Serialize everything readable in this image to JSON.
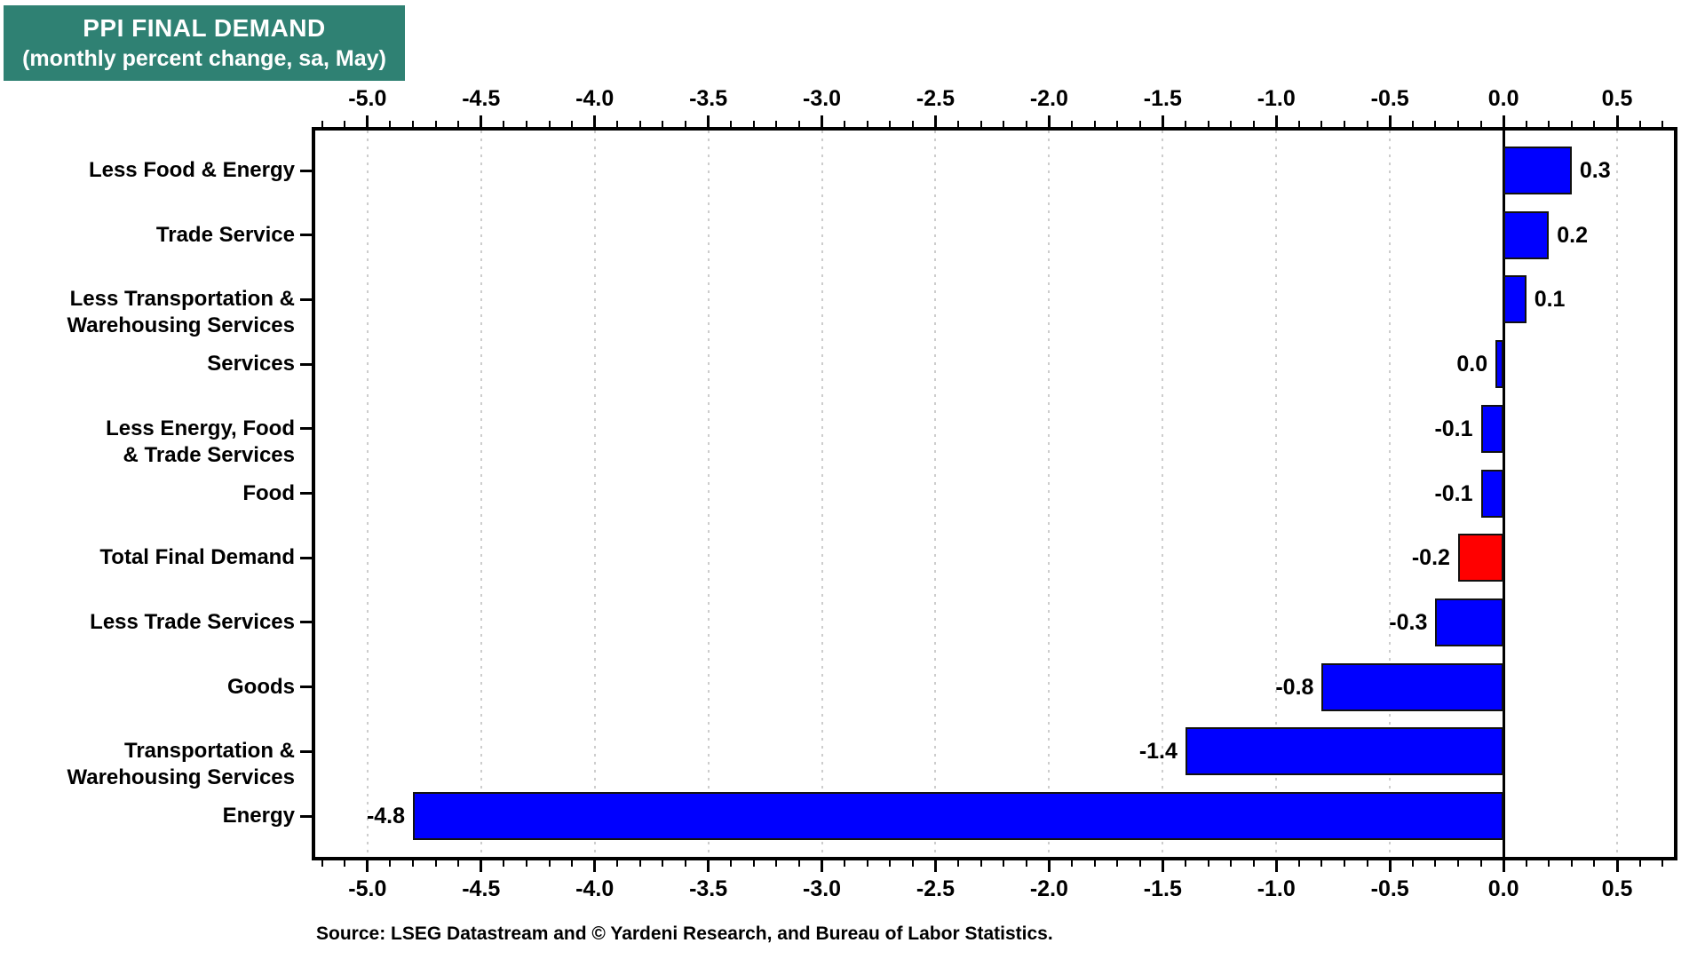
{
  "title": {
    "line1": "PPI FINAL DEMAND",
    "line2": "(monthly percent change, sa, May)"
  },
  "source": "Source: LSEG Datastream and © Yardeni Research, and Bureau of Labor Statistics.",
  "colors": {
    "title_background": "#2F8173",
    "title_text": "#FFFFFF",
    "bar": "#0000FF",
    "highlight": "#FF0000",
    "bar_border": "#111111",
    "grid": "#CDCDCD",
    "axis": "#000000",
    "text": "#000000"
  },
  "chart_data": {
    "type": "bar",
    "orientation": "horizontal",
    "title": "PPI FINAL DEMAND (monthly percent change, sa, May)",
    "xlabel": "monthly percent change (sa, May)",
    "ylabel": "",
    "legend": "none",
    "grid": {
      "style": "dotted-vertical",
      "interval": 0.5,
      "zero_line": "solid black"
    },
    "categories": [
      {
        "lines": [
          "Less Food & Energy"
        ]
      },
      {
        "lines": [
          "Trade Service"
        ]
      },
      {
        "lines": [
          "Less Transportation &",
          "Warehousing Services"
        ]
      },
      {
        "lines": [
          "Services"
        ]
      },
      {
        "lines": [
          "Less Energy, Food",
          "& Trade Services"
        ]
      },
      {
        "lines": [
          "Food"
        ]
      },
      {
        "lines": [
          "Total Final Demand"
        ]
      },
      {
        "lines": [
          "Less Trade Services"
        ]
      },
      {
        "lines": [
          "Goods"
        ]
      },
      {
        "lines": [
          "Transportation &",
          "Warehousing Services"
        ]
      },
      {
        "lines": [
          "Energy"
        ]
      }
    ],
    "values": [
      0.3,
      0.2,
      0.1,
      0.0,
      -0.1,
      -0.1,
      -0.2,
      -0.3,
      -0.8,
      -1.4,
      -4.8
    ],
    "value_labels": [
      "0.3",
      "0.2",
      "0.1",
      "0.0",
      "-0.1",
      "-0.1",
      "-0.2",
      "-0.3",
      "-0.8",
      "-1.4",
      "-4.8"
    ],
    "highlight_index": 6,
    "axis": {
      "min": -5.23,
      "max": 0.75,
      "major_tick_step": 0.5,
      "minor_tick_step": 0.1,
      "tick_values": [
        -5.0,
        -4.5,
        -4.0,
        -3.5,
        -3.0,
        -2.5,
        -2.0,
        -1.5,
        -1.0,
        -0.5,
        0.0,
        0.5
      ],
      "tick_labels": [
        "-5.0",
        "-4.5",
        "-4.0",
        "-3.5",
        "-3.0",
        "-2.5",
        "-2.0",
        "-1.5",
        "-1.0",
        "-0.5",
        "0.0",
        "0.5"
      ],
      "labels_shown": "top and bottom"
    }
  }
}
